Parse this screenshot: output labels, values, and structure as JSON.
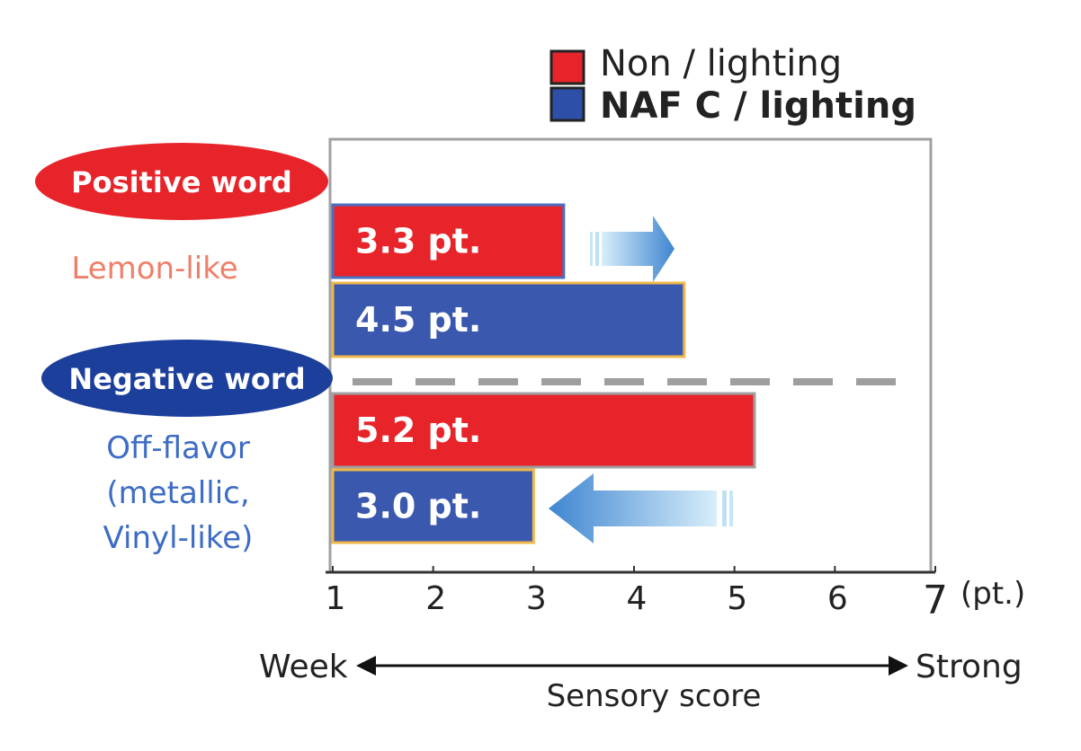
{
  "chart_data": {
    "type": "bar",
    "orientation": "horizontal",
    "xlim": [
      1,
      7
    ],
    "x_ticks": [
      "1",
      "2",
      "3",
      "4",
      "5",
      "6",
      "7"
    ],
    "unit": "(pt.)",
    "legend": {
      "placement": "top-right",
      "entries": [
        {
          "name": "Non / lighting",
          "color": "#e8242b"
        },
        {
          "name": "NAF C / lighting",
          "color": "#2e4fa8"
        }
      ]
    },
    "groups": [
      {
        "badge": "Positive word",
        "badge_color": "#e8242b",
        "label_lines": [
          "Lemon-like"
        ],
        "label_color": "#f07f6a",
        "bars": [
          {
            "series": "Non / lighting",
            "value": 3.3,
            "label": "3.3 pt.",
            "color": "#e8242b",
            "border": "#4a6fc0"
          },
          {
            "series": "NAF C / lighting",
            "value": 4.5,
            "label": "4.5 pt.",
            "color": "#3a58ad",
            "border": "#f0b84a"
          }
        ],
        "arrow": "right"
      },
      {
        "badge": "Negative word",
        "badge_color": "#1c3f9c",
        "label_lines": [
          "Off-flavor",
          "(metallic,",
          "Vinyl-like)"
        ],
        "label_color": "#3d6cc5",
        "bars": [
          {
            "series": "Non / lighting",
            "value": 5.2,
            "label": "5.2 pt.",
            "color": "#e8242b",
            "border": "#a0a0a0"
          },
          {
            "series": "NAF C / lighting",
            "value": 3.0,
            "label": "3.0 pt.",
            "color": "#3a58ad",
            "border": "#f0b84a"
          }
        ],
        "arrow": "left"
      }
    ],
    "scale": {
      "left_label": "Week",
      "right_label": "Strong",
      "caption": "Sensory score"
    },
    "colors": {
      "frame": "#a0a0a0",
      "divider": "#9e9e9e",
      "text": "#222222"
    }
  }
}
